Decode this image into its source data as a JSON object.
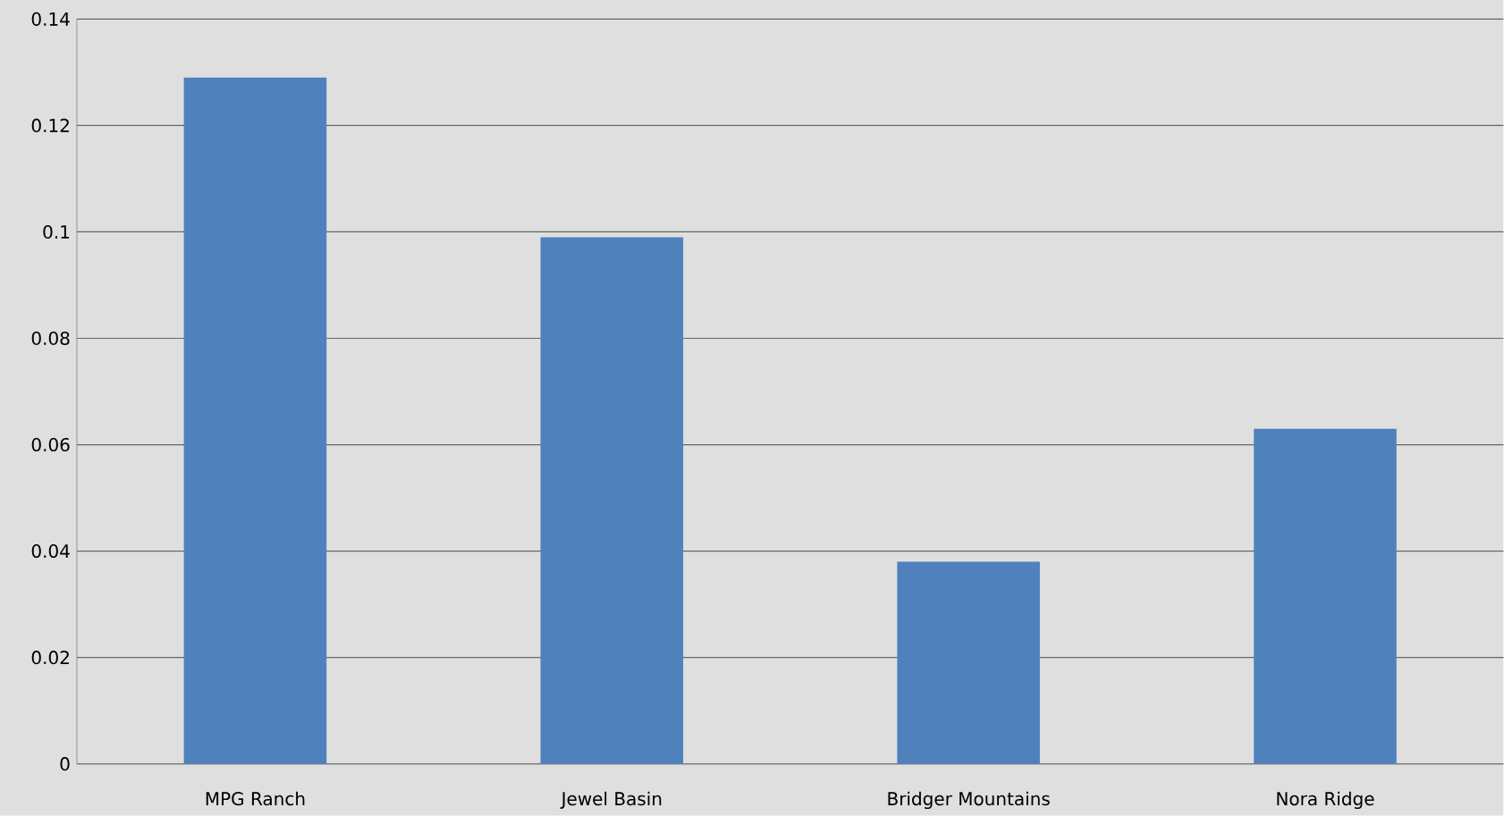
{
  "chart_data": {
    "type": "bar",
    "categories": [
      "MPG Ranch",
      "Jewel Basin",
      "Bridger Mountains",
      "Nora Ridge"
    ],
    "values": [
      0.129,
      0.099,
      0.038,
      0.063
    ],
    "color": "#4f81bd",
    "ylim": [
      0,
      0.14
    ],
    "yticks": [
      0,
      0.02,
      0.04,
      0.06,
      0.08,
      0.1,
      0.12,
      0.14
    ],
    "grid": "y"
  }
}
